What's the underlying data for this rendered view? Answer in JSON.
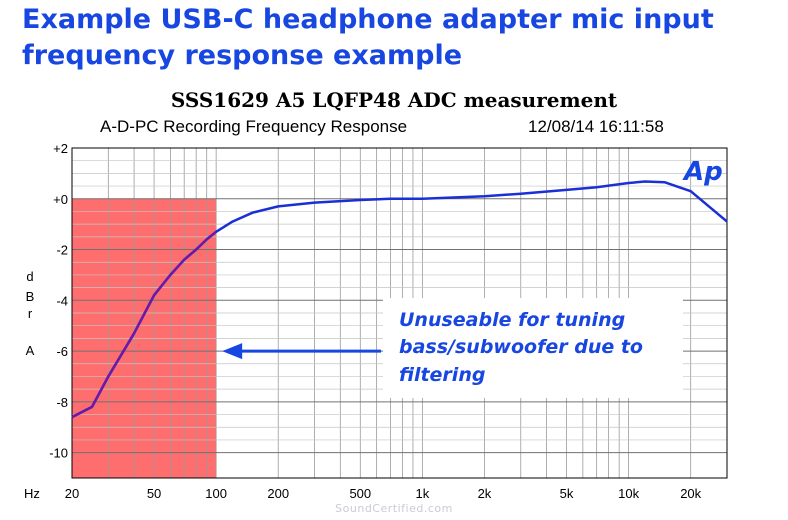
{
  "headline": {
    "line1": "Example USB-C headphone adapter mic input",
    "line2": "frequency response example"
  },
  "watermark": "SoundCertified.com",
  "colors": {
    "headline": "#1746e0",
    "curve": "#1a2fd6",
    "curve_in_region": "#6a1aa8",
    "highlight": "#ff6e6e",
    "annotation": "#1746e0"
  },
  "chart_data": {
    "type": "line",
    "title": "SSS1629 A5 LQFP48 ADC measurement",
    "subtitle": "A-D-PC Recording Frequency Response",
    "timestamp": "12/08/14 16:11:58",
    "logo": "Ap",
    "xlabel": "Hz",
    "ylabel": "dBrA",
    "ylabel_letters": [
      "d",
      "B",
      "r",
      "A"
    ],
    "x_scale": "log",
    "xlim": [
      20,
      30000
    ],
    "ylim": [
      -11,
      2
    ],
    "grid": true,
    "x_ticks": [
      {
        "value": 20,
        "label": "20"
      },
      {
        "value": 50,
        "label": "50"
      },
      {
        "value": 100,
        "label": "100"
      },
      {
        "value": 200,
        "label": "200"
      },
      {
        "value": 500,
        "label": "500"
      },
      {
        "value": 1000,
        "label": "1k"
      },
      {
        "value": 2000,
        "label": "2k"
      },
      {
        "value": 5000,
        "label": "5k"
      },
      {
        "value": 10000,
        "label": "10k"
      },
      {
        "value": 20000,
        "label": "20k"
      }
    ],
    "y_ticks": [
      {
        "value": 2,
        "label": "+2"
      },
      {
        "value": 0,
        "label": "+0"
      },
      {
        "value": -2,
        "label": "-2"
      },
      {
        "value": -4,
        "label": "-4"
      },
      {
        "value": -6,
        "label": "-6"
      },
      {
        "value": -8,
        "label": "-8"
      },
      {
        "value": -10,
        "label": "-10"
      }
    ],
    "series": [
      {
        "x": [
          20,
          25,
          30,
          40,
          50,
          60,
          70,
          80,
          90,
          100,
          120,
          150,
          200,
          300,
          500,
          700,
          1000,
          2000,
          3000,
          5000,
          7000,
          10000,
          12000,
          15000,
          20000,
          30000
        ],
        "y": [
          -8.6,
          -8.2,
          -7.0,
          -5.3,
          -3.8,
          -3.0,
          -2.4,
          -2.0,
          -1.6,
          -1.3,
          -0.9,
          -0.55,
          -0.3,
          -0.15,
          -0.05,
          0.0,
          0.0,
          0.1,
          0.2,
          0.35,
          0.45,
          0.62,
          0.68,
          0.65,
          0.3,
          -0.9
        ]
      }
    ],
    "unusable_region": {
      "x": [
        20,
        100
      ],
      "y": [
        -11,
        0
      ]
    },
    "annotation": {
      "lines": [
        "Unuseable for tuning",
        "bass/subwoofer due to",
        "filtering"
      ],
      "arrow_to": {
        "x": 100,
        "y": -6
      }
    }
  }
}
